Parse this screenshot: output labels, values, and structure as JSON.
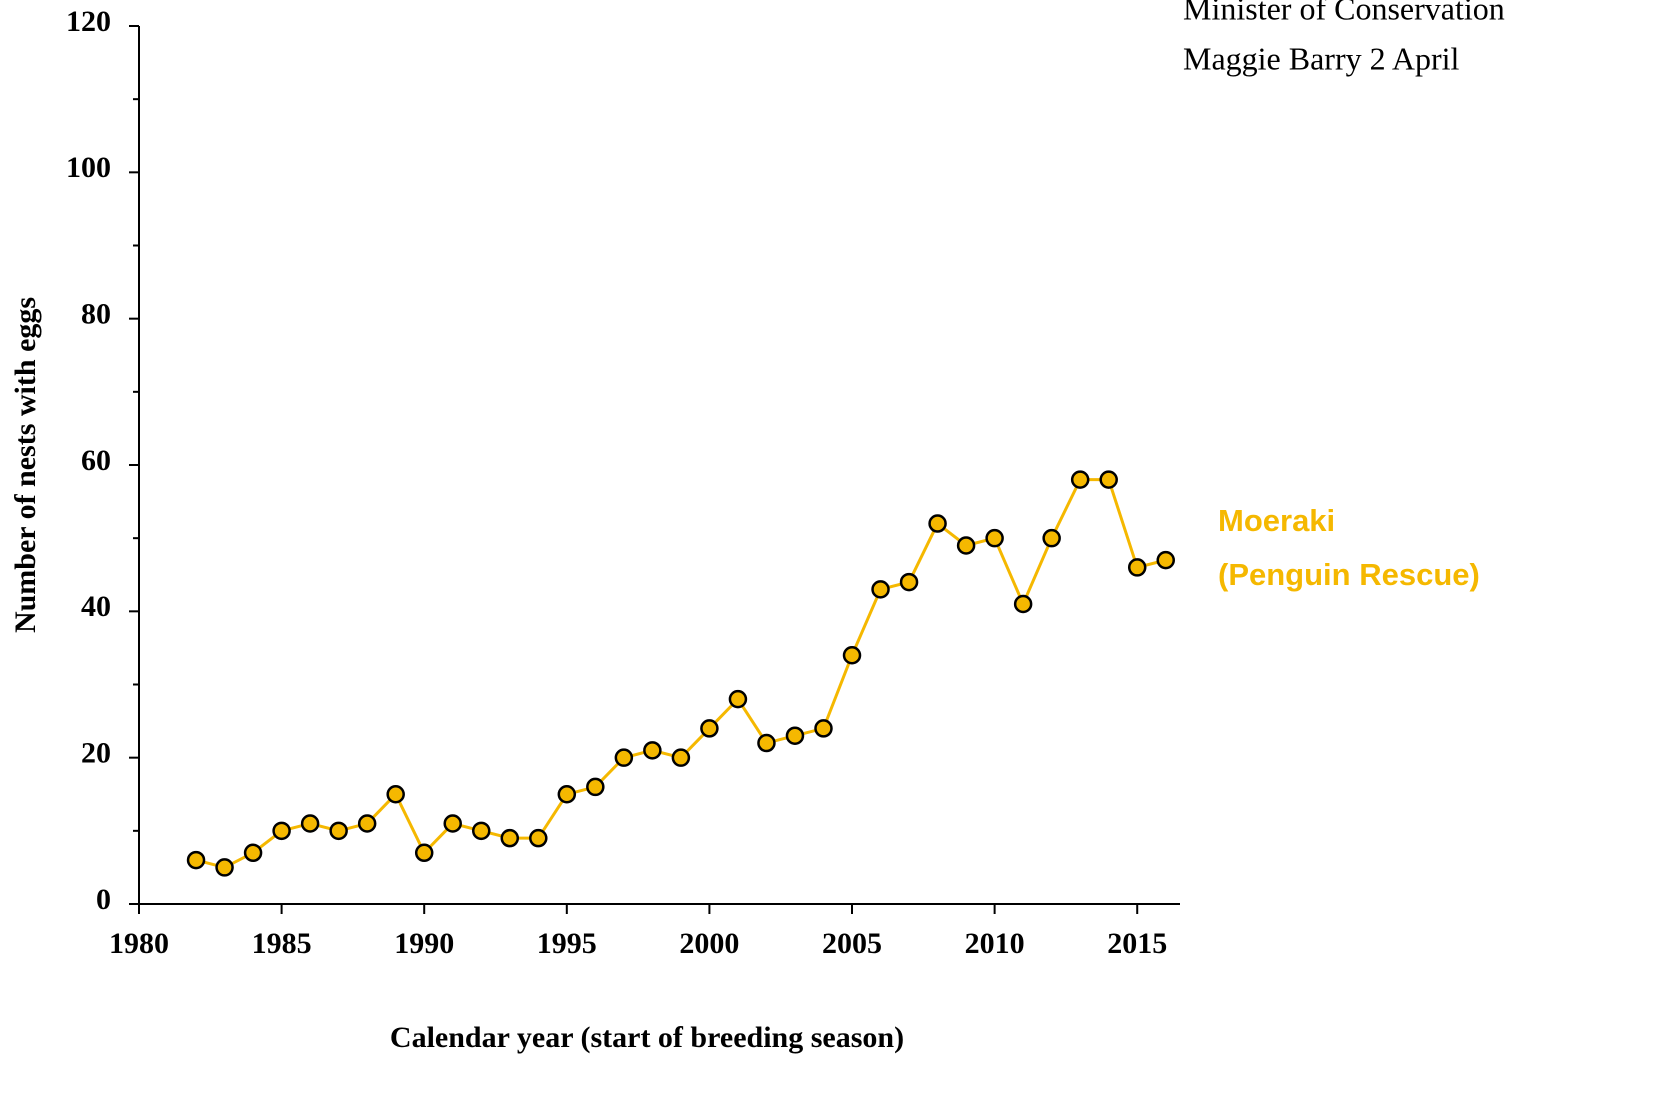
{
  "chart_data": {
    "type": "line",
    "annotations": [
      "Minister of Conservation",
      "Maggie Barry 2 April"
    ],
    "xlabel": "Calendar year (start of breeding season)",
    "ylabel": "Number of nests with eggs",
    "x": [
      1982,
      1983,
      1984,
      1985,
      1986,
      1987,
      1988,
      1989,
      1990,
      1991,
      1992,
      1993,
      1994,
      1995,
      1996,
      1997,
      1998,
      1999,
      2000,
      2001,
      2002,
      2003,
      2004,
      2005,
      2006,
      2007,
      2008,
      2009,
      2010,
      2011,
      2012,
      2013,
      2014,
      2015,
      2016
    ],
    "series": [
      {
        "label_lines": [
          "Moeraki",
          "(Penguin Rescue)"
        ],
        "color": "#f5b800",
        "values": [
          6,
          5,
          7,
          10,
          11,
          10,
          11,
          15,
          7,
          11,
          10,
          9,
          9,
          15,
          16,
          20,
          21,
          20,
          24,
          28,
          22,
          23,
          24,
          34,
          43,
          44,
          52,
          49,
          50,
          41,
          50,
          58,
          58,
          46,
          47
        ]
      }
    ],
    "xlim": [
      1980,
      2016.5
    ],
    "xticks": [
      1980,
      1985,
      1990,
      1995,
      2000,
      2005,
      2010,
      2015
    ],
    "ylim": [
      0,
      120
    ],
    "yticks": [
      0,
      20,
      40,
      60,
      80,
      100,
      120
    ],
    "yminorticks": [
      10,
      30,
      50,
      70,
      90,
      110
    ],
    "grid": false
  }
}
